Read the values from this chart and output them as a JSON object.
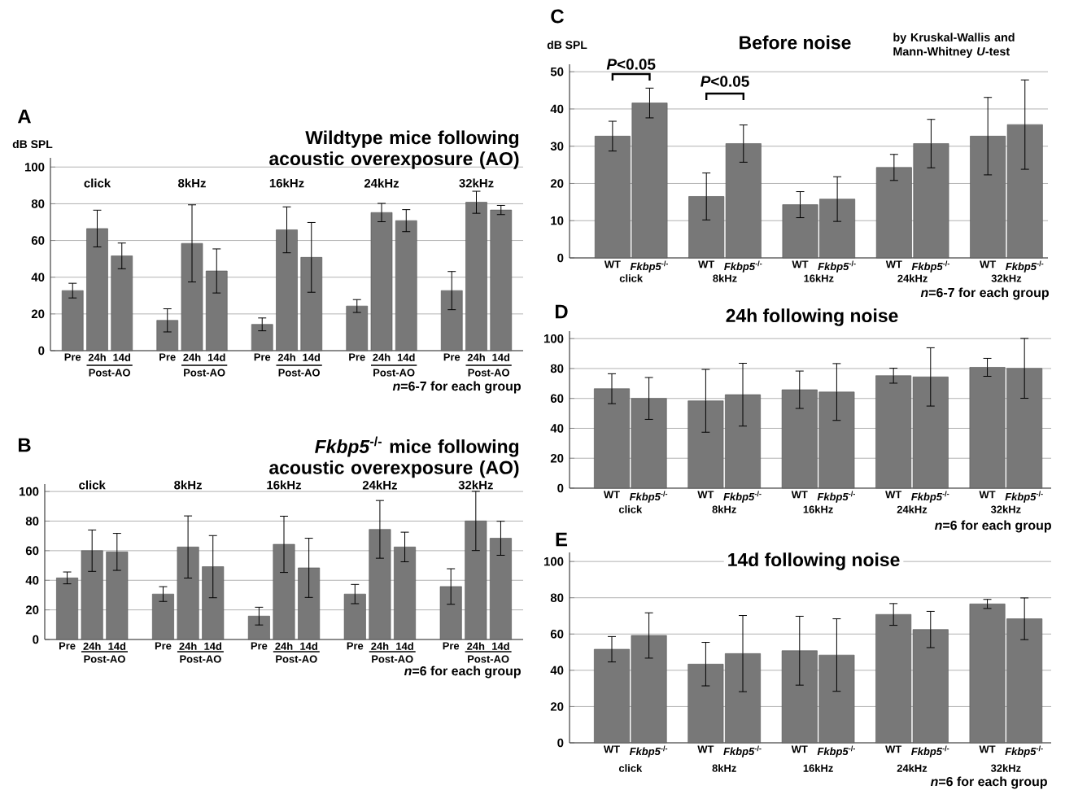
{
  "chart_data": [
    {
      "type": "bar",
      "title": "Wildtype mice following acoustic overexposure (AO)",
      "ylabel": "dB SPL",
      "categories": [
        "Pre",
        "24h",
        "14d",
        "Pre",
        "24h",
        "14d",
        "Pre",
        "24h",
        "14d",
        "Pre",
        "24h",
        "14d",
        "Pre",
        "24h",
        "14d"
      ],
      "values": [
        32.7,
        66.5,
        51.6,
        16.5,
        58.4,
        43.4,
        14.3,
        65.8,
        50.8,
        24.3,
        75.2,
        70.8,
        32.7,
        80.8,
        76.6
      ],
      "errors": [
        4,
        10,
        7,
        6.3,
        21,
        12,
        3.5,
        12.5,
        19,
        3.5,
        5,
        6,
        10.4,
        6,
        2.5
      ],
      "color": "#787878",
      "ylim": [
        0,
        105
      ],
      "yticks": [
        0,
        20,
        40,
        60,
        80,
        100
      ],
      "grid": "y",
      "annotations": [
        "A",
        "click",
        "8kHz",
        "16kHz",
        "24kHz",
        "32kHz",
        "Post-AO",
        "Post-AO",
        "Post-AO",
        "Post-AO",
        "Post-AO",
        "*n*=6-7 for each group"
      ]
    },
    {
      "type": "bar",
      "title": "*Fkbp5*$^{-/-}$ mice following acoustic overexposure (AO)",
      "categories": [
        "Pre",
        "24h",
        "14d",
        "Pre",
        "24h",
        "14d",
        "Pre",
        "24h",
        "14d",
        "Pre",
        "24h",
        "14d",
        "Pre",
        "24h",
        "14d"
      ],
      "values": [
        41.6,
        60,
        59.2,
        30.7,
        62.5,
        49.2,
        15.8,
        64.3,
        48.4,
        30.7,
        74.4,
        62.5,
        35.8,
        80.1,
        68.4
      ],
      "errors": [
        4,
        14,
        12.5,
        5,
        21,
        21,
        6,
        19,
        20,
        6.5,
        19.5,
        10,
        12,
        20,
        11.5
      ],
      "color": "#787878",
      "ylim": [
        0,
        105
      ],
      "yticks": [
        0,
        20,
        40,
        60,
        80,
        100
      ],
      "grid": "y",
      "annotations": [
        "B",
        "click",
        "8kHz",
        "16kHz",
        "24kHz",
        "32kHz",
        "Post-AO",
        "Post-AO",
        "Post-AO",
        "Post-AO",
        "Post-AO",
        "*n*=6 for each group"
      ]
    },
    {
      "type": "bar",
      "title": "Before noise",
      "ylabel": "dB SPL",
      "categories": [
        "WT",
        "*Fkbp5*$^{-/-}$",
        "WT",
        "*Fkbp5*$^{-/-}$",
        "WT",
        "*Fkbp5*$^{-/-}$",
        "WT",
        "*Fkbp5*$^{-/-}$",
        "WT",
        "*Fkbp5*$^{-/-}$"
      ],
      "values": [
        32.7,
        41.6,
        16.5,
        30.7,
        14.3,
        15.8,
        24.3,
        30.7,
        32.7,
        35.8
      ],
      "errors": [
        4,
        4,
        6.3,
        5,
        3.5,
        6,
        3.5,
        6.5,
        10.4,
        12
      ],
      "color": "#787878",
      "ylim": [
        0,
        52
      ],
      "yticks": [
        0,
        10,
        20,
        30,
        40,
        50
      ],
      "grid": "y",
      "annotations": [
        "C",
        "by Kruskal-Wallis and Mann-Whitney *U*-test",
        "*P*<0.05",
        "*P*<0.05",
        "click",
        "8kHz",
        "16kHz",
        "24kHz",
        "32kHz",
        "*n*=6-7 for each group"
      ]
    },
    {
      "type": "bar",
      "title": "24h following noise",
      "categories": [
        "WT",
        "*Fkbp5*$^{-/-}$",
        "WT",
        "*Fkbp5*$^{-/-}$",
        "WT",
        "*Fkbp5*$^{-/-}$",
        "WT",
        "*Fkbp5*$^{-/-}$",
        "WT",
        "*Fkbp5*$^{-/-}$"
      ],
      "values": [
        66.5,
        60,
        58.4,
        62.5,
        65.8,
        64.3,
        75.2,
        74.4,
        80.8,
        80.1
      ],
      "errors": [
        10,
        14,
        21,
        21,
        12.5,
        19,
        5,
        19.5,
        6,
        20
      ],
      "color": "#787878",
      "ylim": [
        0,
        105
      ],
      "yticks": [
        0,
        20,
        40,
        60,
        80,
        100
      ],
      "grid": "y",
      "annotations": [
        "D",
        "click",
        "8kHz",
        "16kHz",
        "24kHz",
        "32kHz",
        "*n*=6 for each group"
      ]
    },
    {
      "type": "bar",
      "title": "14d following noise",
      "categories": [
        "WT",
        "*Fkbp5*$^{-/-}$",
        "WT",
        "*Fkbp5*$^{-/-}$",
        "WT",
        "*Fkbp5*$^{-/-}$",
        "WT",
        "*Fkbp5*$^{-/-}$",
        "WT",
        "*Fkbp5*$^{-/-}$"
      ],
      "values": [
        51.6,
        59.2,
        43.4,
        49.2,
        50.8,
        48.4,
        70.8,
        62.5,
        76.6,
        68.4
      ],
      "errors": [
        7,
        12.5,
        12,
        21,
        19,
        20,
        6,
        10,
        2.5,
        11.5
      ],
      "color": "#787878",
      "ylim": [
        0,
        105
      ],
      "yticks": [
        0,
        20,
        40,
        60,
        80,
        100
      ],
      "grid": "y",
      "annotations": [
        "E",
        "click",
        "8kHz",
        "16kHz",
        "24kHz",
        "32kHz",
        "*n*=6 for each group"
      ]
    }
  ]
}
